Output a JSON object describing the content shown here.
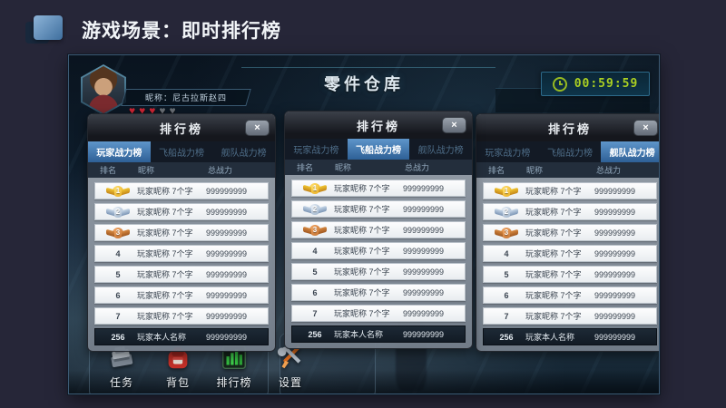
{
  "slide": {
    "title": "游戏场景：即时排行榜"
  },
  "hud": {
    "nickname": "昵称：尼古拉斯赵四",
    "hearts": {
      "glyph": "♥",
      "filled": 3,
      "total": 5
    },
    "scene_title": "零件仓库",
    "timer": "00:59:59"
  },
  "leaderboard": {
    "panel_title": "排行榜",
    "close_glyph": "×",
    "tabs": [
      "玩家战力榜",
      "飞船战力榜",
      "舰队战力榜"
    ],
    "columns": [
      "排名",
      "昵称",
      "总战力"
    ],
    "rows": [
      {
        "rank": "1",
        "medal": "gold",
        "name": "玩家昵称 7个字",
        "power": "999999999"
      },
      {
        "rank": "2",
        "medal": "silver",
        "name": "玩家昵称 7个字",
        "power": "999999999"
      },
      {
        "rank": "3",
        "medal": "bronze",
        "name": "玩家昵称 7个字",
        "power": "999999999"
      },
      {
        "rank": "4",
        "medal": null,
        "name": "玩家昵称 7个字",
        "power": "999999999"
      },
      {
        "rank": "5",
        "medal": null,
        "name": "玩家昵称 7个字",
        "power": "999999999"
      },
      {
        "rank": "6",
        "medal": null,
        "name": "玩家昵称 7个字",
        "power": "999999999"
      },
      {
        "rank": "7",
        "medal": null,
        "name": "玩家昵称 7个字",
        "power": "999999999"
      }
    ],
    "self_row": {
      "rank": "256",
      "name": "玩家本人名称",
      "power": "999999999"
    },
    "panels": [
      {
        "active_tab": 0
      },
      {
        "active_tab": 1
      },
      {
        "active_tab": 2
      }
    ]
  },
  "taskbar": {
    "items": [
      {
        "key": "task",
        "label": "任务",
        "icon": "task-icon"
      },
      {
        "key": "backpack",
        "label": "背包",
        "icon": "backpack-icon"
      },
      {
        "key": "ranking",
        "label": "排行榜",
        "icon": "ranking-icon"
      },
      {
        "key": "settings",
        "label": "设置",
        "icon": "settings-icon"
      }
    ]
  },
  "colors": {
    "accent_blue": "#3f78b0",
    "timer_green": "#abd022",
    "heart_red": "#cf2535",
    "medal_gold": "#e8b620",
    "medal_silver": "#9db4cc",
    "medal_bronze": "#c9762f"
  }
}
